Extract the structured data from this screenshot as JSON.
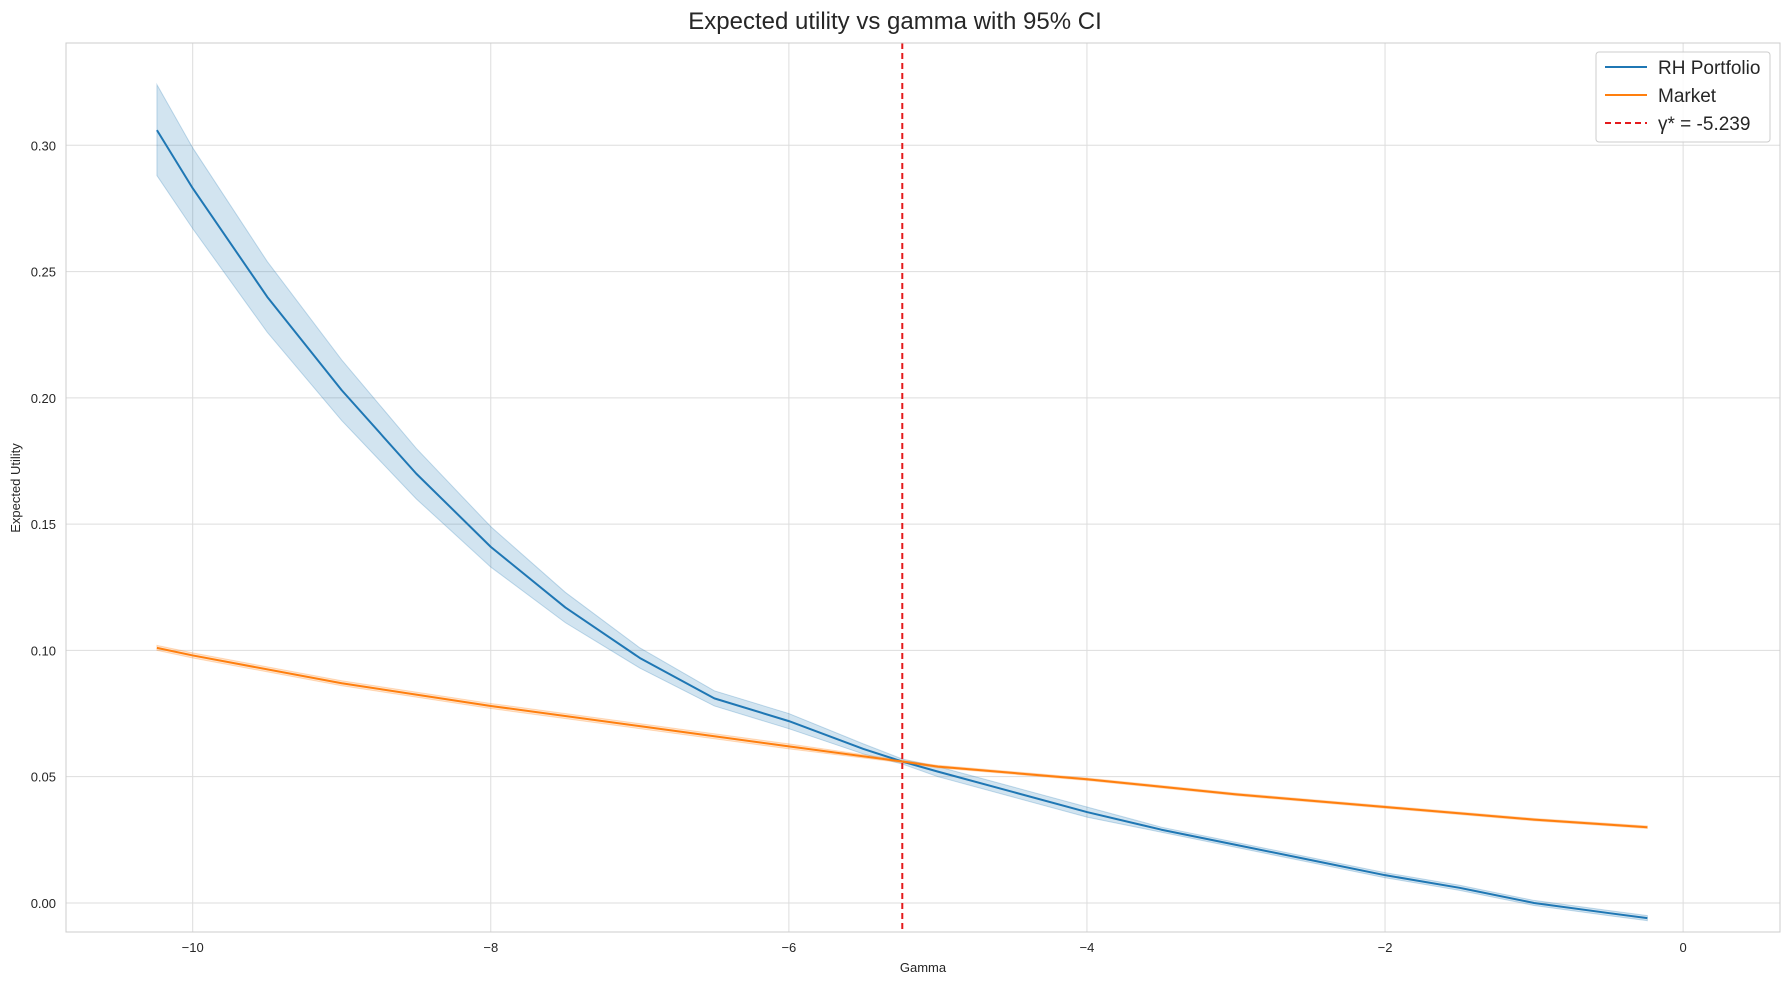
{
  "chart_data": {
    "type": "line",
    "title": "Expected utility vs gamma with 95% CI",
    "xlabel": "Gamma",
    "ylabel": "Expected Utility",
    "xlim": [
      -10.85,
      0.65
    ],
    "ylim": [
      -0.0115,
      0.3405
    ],
    "xticks": [
      -10,
      -8,
      -6,
      -4,
      -2,
      0
    ],
    "xtick_labels": [
      "−10",
      "−8",
      "−6",
      "−4",
      "−2",
      "0"
    ],
    "yticks": [
      0.0,
      0.05,
      0.1,
      0.15,
      0.2,
      0.25,
      0.3
    ],
    "ytick_labels": [
      "0.00",
      "0.05",
      "0.10",
      "0.15",
      "0.20",
      "0.25",
      "0.30"
    ],
    "grid": true,
    "legend_position": "top-right",
    "series": [
      {
        "name": "RH Portfolio",
        "color": "#1f77b4",
        "x": [
          -10.24,
          -10.0,
          -9.5,
          -9.0,
          -8.5,
          -8.0,
          -7.5,
          -7.0,
          -6.5,
          -6.0,
          -5.5,
          -5.239,
          -5.0,
          -4.5,
          -4.0,
          -3.5,
          -3.0,
          -2.5,
          -2.0,
          -1.5,
          -1.0,
          -0.5,
          -0.24
        ],
        "y": [
          0.306,
          0.283,
          0.24,
          0.203,
          0.17,
          0.141,
          0.117,
          0.097,
          0.081,
          0.072,
          0.061,
          0.056,
          0.052,
          0.044,
          0.036,
          0.029,
          0.023,
          0.017,
          0.011,
          0.006,
          0.0,
          -0.004,
          -0.006
        ],
        "ci_lower": [
          0.288,
          0.267,
          0.226,
          0.191,
          0.16,
          0.133,
          0.111,
          0.093,
          0.078,
          0.069,
          0.059,
          0.055,
          0.05,
          0.042,
          0.034,
          0.028,
          0.022,
          0.016,
          0.01,
          0.005,
          -0.001,
          -0.005,
          -0.007
        ],
        "ci_upper": [
          0.324,
          0.299,
          0.254,
          0.215,
          0.18,
          0.149,
          0.123,
          0.101,
          0.084,
          0.075,
          0.063,
          0.057,
          0.054,
          0.046,
          0.038,
          0.03,
          0.024,
          0.018,
          0.012,
          0.007,
          0.001,
          -0.003,
          -0.005
        ]
      },
      {
        "name": "Market",
        "color": "#ff7f0e",
        "x": [
          -10.24,
          -10.0,
          -9.0,
          -8.0,
          -7.0,
          -6.0,
          -5.239,
          -5.0,
          -4.0,
          -3.0,
          -2.0,
          -1.0,
          -0.24
        ],
        "y": [
          0.101,
          0.098,
          0.087,
          0.078,
          0.07,
          0.062,
          0.056,
          0.054,
          0.049,
          0.043,
          0.038,
          0.033,
          0.03
        ],
        "ci_lower": [
          0.1,
          0.097,
          0.086,
          0.077,
          0.069,
          0.061,
          0.0555,
          0.0535,
          0.0485,
          0.0425,
          0.0375,
          0.0325,
          0.0295
        ],
        "ci_upper": [
          0.102,
          0.099,
          0.088,
          0.079,
          0.071,
          0.063,
          0.0565,
          0.0545,
          0.0495,
          0.0435,
          0.0385,
          0.0335,
          0.0305
        ]
      }
    ],
    "vline": {
      "x": -5.239,
      "label": "γ* = -5.239",
      "color": "#e41a1c"
    }
  }
}
